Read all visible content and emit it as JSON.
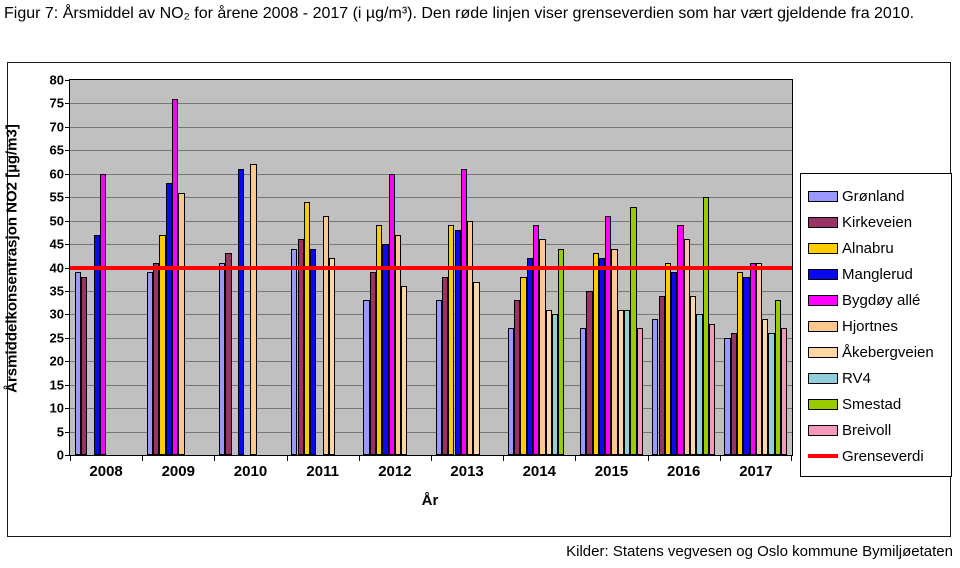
{
  "figure": {
    "caption": "Figur 7: Årsmiddel av NO₂ for årene 2008 - 2017 (i µg/m³). Den røde linjen viser grenseverdien som har vært gjeldende fra 2010.",
    "source": "Kilder: Statens vegvesen og Oslo kommune Bymiljøetaten"
  },
  "chart_data": {
    "type": "bar",
    "title": "",
    "xlabel": "År",
    "ylabel": "Årsmiddelkonsentrasjon NO2 [µg/m3]",
    "ylim": [
      0,
      80
    ],
    "ytick_step": 5,
    "grid": true,
    "plot_background": "#C0C0C0",
    "gridline_color": "#777777",
    "legend_position": "right",
    "categories": [
      "2008",
      "2009",
      "2010",
      "2011",
      "2012",
      "2013",
      "2014",
      "2015",
      "2016",
      "2017"
    ],
    "series": [
      {
        "name": "Grønland",
        "color": "#9999FF",
        "values": [
          39,
          39,
          41,
          44,
          33,
          33,
          27,
          27,
          29,
          25
        ]
      },
      {
        "name": "Kirkeveien",
        "color": "#993366",
        "values": [
          38,
          41,
          43,
          46,
          39,
          38,
          33,
          35,
          34,
          26
        ]
      },
      {
        "name": "Alnabru",
        "color": "#FFCC00",
        "values": [
          null,
          47,
          null,
          54,
          49,
          49,
          38,
          43,
          41,
          39
        ]
      },
      {
        "name": "Manglerud",
        "color": "#0909EE",
        "values": [
          47,
          58,
          61,
          44,
          45,
          48,
          42,
          42,
          39,
          38
        ]
      },
      {
        "name": "Bygdøy allé",
        "color": "#FF00FF",
        "values": [
          60,
          76,
          null,
          null,
          60,
          61,
          49,
          51,
          49,
          41
        ]
      },
      {
        "name": "Hjortnes",
        "color": "#FBC88D",
        "values": [
          null,
          56,
          62,
          51,
          47,
          50,
          46,
          44,
          46,
          41
        ]
      },
      {
        "name": "Åkebergveien",
        "color": "#FCD7A4",
        "values": [
          null,
          null,
          null,
          42,
          36,
          37,
          31,
          31,
          34,
          29
        ]
      },
      {
        "name": "RV4",
        "color": "#92CDDC",
        "values": [
          null,
          null,
          null,
          null,
          null,
          null,
          30,
          31,
          30,
          26
        ]
      },
      {
        "name": "Smestad",
        "color": "#99CC00",
        "values": [
          null,
          null,
          null,
          null,
          null,
          null,
          44,
          53,
          55,
          33
        ]
      },
      {
        "name": "Breivoll",
        "color": "#F498BC",
        "values": [
          null,
          null,
          null,
          null,
          null,
          null,
          null,
          27,
          28,
          27
        ]
      }
    ],
    "reference_line": {
      "label": "Grenseverdi",
      "value": 40,
      "color": "#FF0000"
    }
  }
}
